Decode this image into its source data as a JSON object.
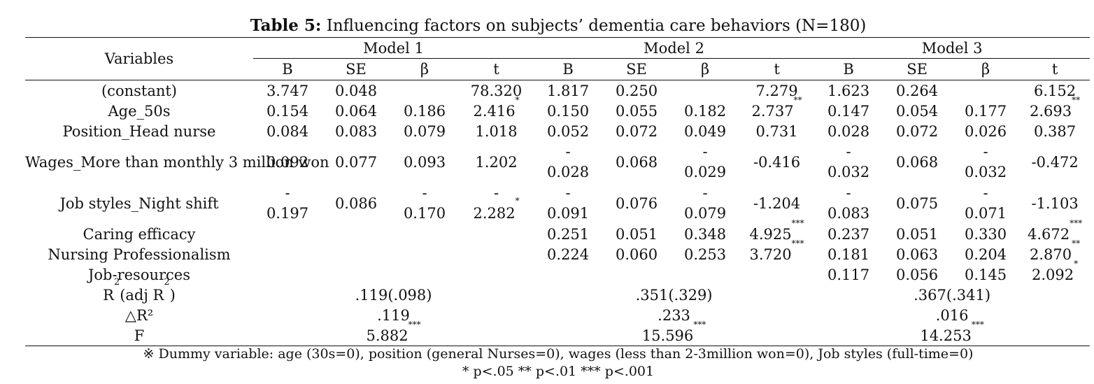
{
  "table": {
    "label": "Table 5:",
    "title": " Influencing factors on subjects’ dementia care behaviors (N=180)",
    "header": {
      "variables": "Variables",
      "models": [
        "Model 1",
        "Model 2",
        "Model 3"
      ],
      "stats": [
        "B",
        "SE",
        "β",
        "t"
      ]
    },
    "rows": [
      {
        "name": "(constant)",
        "cells": [
          {
            "v": "3.747"
          },
          {
            "v": "0.048"
          },
          {
            "v": ""
          },
          {
            "v": "78.320"
          },
          {
            "v": "1.817"
          },
          {
            "v": "0.250"
          },
          {
            "v": ""
          },
          {
            "v": "7.279"
          },
          {
            "v": "1.623"
          },
          {
            "v": "0.264"
          },
          {
            "v": ""
          },
          {
            "v": "6.152"
          }
        ]
      },
      {
        "name": "Age_50s",
        "cells": [
          {
            "v": "0.154"
          },
          {
            "v": "0.064"
          },
          {
            "v": "0.186"
          },
          {
            "v": "2.416",
            "sig": "*"
          },
          {
            "v": "0.150"
          },
          {
            "v": "0.055"
          },
          {
            "v": "0.182"
          },
          {
            "v": "2.737",
            "sig": "**"
          },
          {
            "v": "0.147"
          },
          {
            "v": "0.054"
          },
          {
            "v": "0.177"
          },
          {
            "v": "2.693",
            "sig": "**"
          }
        ]
      },
      {
        "name": "Position_Head nurse",
        "cells": [
          {
            "v": "0.084"
          },
          {
            "v": "0.083"
          },
          {
            "v": "0.079"
          },
          {
            "v": "1.018"
          },
          {
            "v": "0.052"
          },
          {
            "v": "0.072"
          },
          {
            "v": "0.049"
          },
          {
            "v": "0.731"
          },
          {
            "v": "0.028"
          },
          {
            "v": "0.072"
          },
          {
            "v": "0.026"
          },
          {
            "v": "0.387"
          }
        ]
      },
      {
        "name": "Wages_More than monthly 3 million won",
        "two_line": true,
        "cells": [
          {
            "v": "0.092"
          },
          {
            "v": "0.077"
          },
          {
            "v": "0.093"
          },
          {
            "v": "1.202"
          },
          {
            "v": "-0.028",
            "split": true
          },
          {
            "v": "0.068"
          },
          {
            "v": "-0.029",
            "split": true
          },
          {
            "v": "-0.416"
          },
          {
            "v": "-0.032",
            "split": true
          },
          {
            "v": "0.068"
          },
          {
            "v": "-0.032",
            "split": true
          },
          {
            "v": "-0.472"
          }
        ]
      },
      {
        "name": "Job styles_Night shift",
        "two_line": true,
        "cells": [
          {
            "v": "-0.197",
            "split": true
          },
          {
            "v": "0.086"
          },
          {
            "v": "-0.170",
            "split": true
          },
          {
            "v": "-2.282",
            "split": true,
            "sig": "*"
          },
          {
            "v": "-0.091",
            "split": true
          },
          {
            "v": "0.076"
          },
          {
            "v": "-0.079",
            "split": true
          },
          {
            "v": "-1.204"
          },
          {
            "v": "-0.083",
            "split": true
          },
          {
            "v": "0.075"
          },
          {
            "v": "-0.071",
            "split": true
          },
          {
            "v": "-1.103"
          }
        ]
      },
      {
        "name": "Caring efficacy",
        "cells": [
          {
            "v": ""
          },
          {
            "v": ""
          },
          {
            "v": ""
          },
          {
            "v": ""
          },
          {
            "v": "0.251"
          },
          {
            "v": "0.051"
          },
          {
            "v": "0.348"
          },
          {
            "v": "4.925",
            "sig": "***"
          },
          {
            "v": "0.237"
          },
          {
            "v": "0.051"
          },
          {
            "v": "0.330"
          },
          {
            "v": "4.672",
            "sig": "***"
          }
        ]
      },
      {
        "name": "Nursing Professionalism",
        "cells": [
          {
            "v": ""
          },
          {
            "v": ""
          },
          {
            "v": ""
          },
          {
            "v": ""
          },
          {
            "v": "0.224"
          },
          {
            "v": "0.060"
          },
          {
            "v": "0.253"
          },
          {
            "v": "3.720",
            "sig": "***"
          },
          {
            "v": "0.181"
          },
          {
            "v": "0.063"
          },
          {
            "v": "0.204"
          },
          {
            "v": "2.870",
            "sig": "**"
          }
        ]
      },
      {
        "name": "Job-resources",
        "cells": [
          {
            "v": ""
          },
          {
            "v": ""
          },
          {
            "v": ""
          },
          {
            "v": ""
          },
          {
            "v": ""
          },
          {
            "v": ""
          },
          {
            "v": ""
          },
          {
            "v": ""
          },
          {
            "v": "0.117"
          },
          {
            "v": "0.056"
          },
          {
            "v": "0.145"
          },
          {
            "v": "2.092",
            "sig": "*"
          }
        ]
      }
    ],
    "summary": [
      {
        "name_main": "R",
        "name_sup1": "2",
        "name_mid": "(adj R",
        "name_sup2": "2",
        "name_end": ")",
        "values": [
          ".119(.098)",
          ".351(.329)",
          ".367(.341)"
        ],
        "sig": [
          "",
          "",
          ""
        ]
      },
      {
        "name_main": "△R²",
        "name_sup1": "",
        "name_mid": "",
        "name_sup2": "",
        "name_end": "",
        "values": [
          ".119",
          ".233",
          ".016"
        ],
        "sig": [
          "",
          "",
          ""
        ]
      },
      {
        "name_main": "F",
        "name_sup1": "",
        "name_mid": "",
        "name_sup2": "",
        "name_end": "",
        "values": [
          "5.882",
          "15.596",
          "14.253"
        ],
        "sig": [
          "***",
          "***",
          "***"
        ]
      }
    ],
    "footnotes": {
      "dummy": "※ Dummy variable: age (30s=0), position (general Nurses=0), wages (less than 2-3million won=0), Job styles (full-time=0)",
      "significance": "* p<.05 ** p<.01 *** p<.001"
    }
  }
}
